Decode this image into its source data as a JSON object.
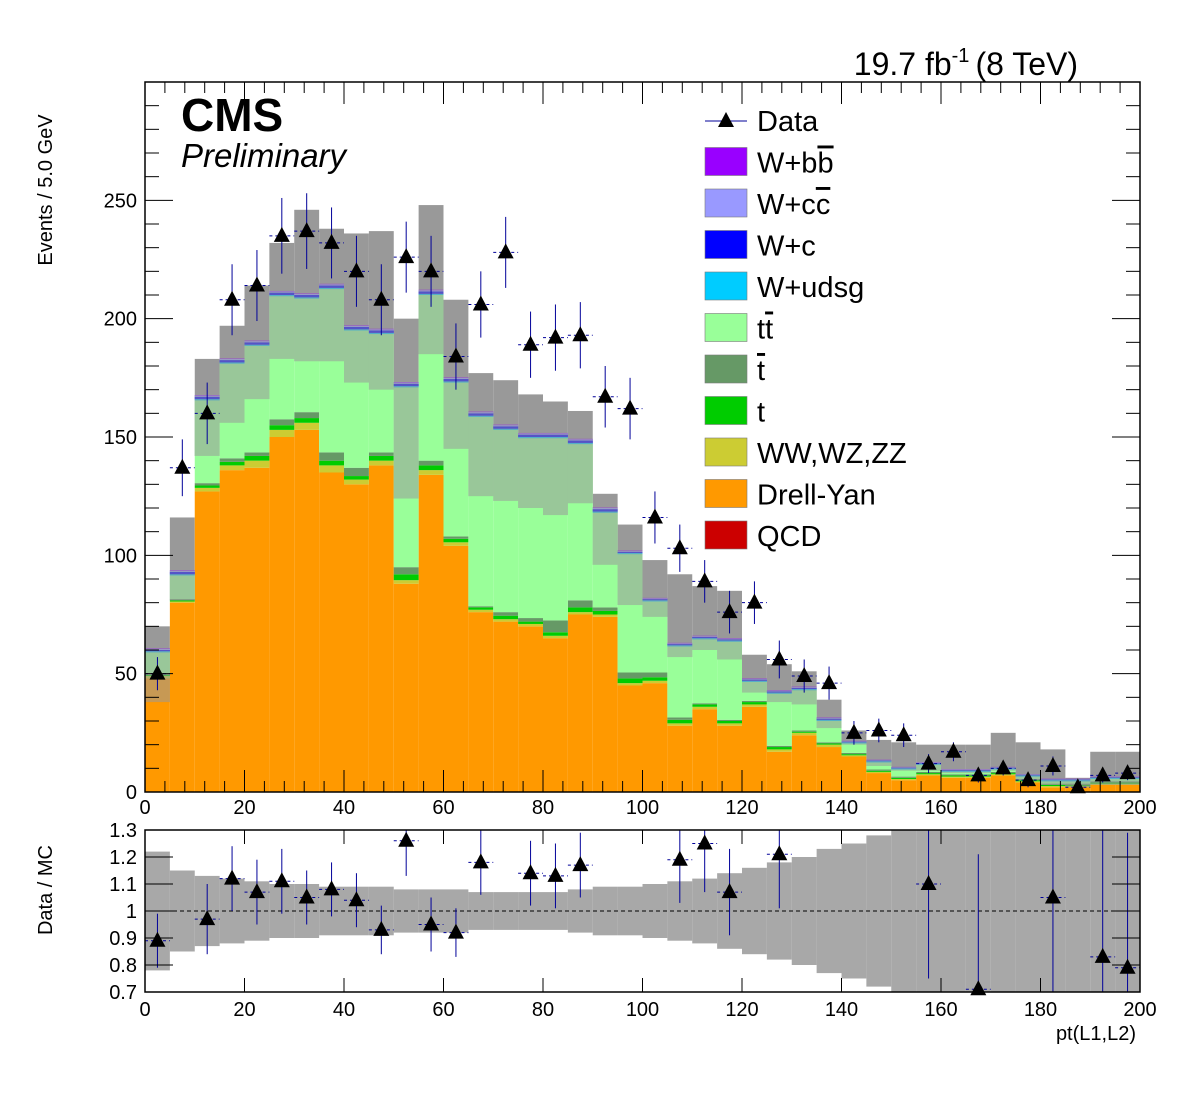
{
  "header": {
    "lumi_value": "19.7 fb",
    "lumi_exp": "-1",
    "lumi_energy": "(8 TeV)",
    "experiment": "CMS",
    "status": "Preliminary"
  },
  "colors": {
    "qcd": "#cc0000",
    "dy": "#ff9900",
    "diboson": "#cccc33",
    "t": "#00cc00",
    "tbar": "#669966",
    "ttbar": "#99ff99",
    "wudsg": "#00ccff",
    "wc": "#0000ff",
    "wcc": "#9999ff",
    "wbb": "#9900ff",
    "uncertainty": "#999999",
    "data": "#000000",
    "error_bar": "#000099"
  },
  "chart_data": [
    {
      "type": "bar",
      "stacked": true,
      "xlabel": "",
      "ylabel": "Events / 5.0 GeV",
      "xlim": [
        0,
        200
      ],
      "ylim": [
        0,
        300
      ],
      "bin_width": 5,
      "bin_edges_start": [
        0,
        5,
        10,
        15,
        20,
        25,
        30,
        35,
        40,
        45,
        50,
        55,
        60,
        65,
        70,
        75,
        80,
        85,
        90,
        95,
        100,
        105,
        110,
        115,
        120,
        125,
        130,
        135,
        140,
        145,
        150,
        155,
        160,
        165,
        170,
        175,
        180,
        185,
        190,
        195
      ],
      "x_ticks": [
        0,
        20,
        40,
        60,
        80,
        100,
        120,
        140,
        160,
        180,
        200
      ],
      "y_ticks": [
        0,
        50,
        100,
        150,
        200,
        250
      ],
      "legend": {
        "position": "top-right",
        "entries": [
          {
            "key": "data",
            "label": "Data"
          },
          {
            "key": "wbb",
            "label": "W+bb",
            "overline_from": 3
          },
          {
            "key": "wcc",
            "label": "W+cc",
            "overline_from": 3
          },
          {
            "key": "wc",
            "label": "W+c"
          },
          {
            "key": "wudsg",
            "label": "W+udsg"
          },
          {
            "key": "ttbar",
            "label": "tt",
            "overline_from": 1
          },
          {
            "key": "tbar",
            "label": "t",
            "overline_from": 0
          },
          {
            "key": "t",
            "label": "t"
          },
          {
            "key": "diboson",
            "label": "WW,WZ,ZZ"
          },
          {
            "key": "dy",
            "label": "Drell-Yan"
          },
          {
            "key": "qcd",
            "label": "QCD"
          }
        ]
      },
      "series": [
        {
          "key": "qcd",
          "label": "QCD",
          "values": [
            0,
            0,
            0,
            0,
            0,
            0,
            0,
            0,
            0,
            0,
            0,
            0,
            0,
            0,
            0,
            0,
            0,
            0,
            0,
            0,
            0,
            0,
            0,
            0,
            0,
            0,
            0,
            0,
            0,
            0,
            0,
            0,
            0,
            0,
            0,
            0,
            0,
            0,
            0,
            0
          ]
        },
        {
          "key": "dy",
          "label": "Drell-Yan",
          "values": [
            48,
            80,
            127,
            136,
            137,
            150,
            153,
            135,
            130,
            138,
            88,
            134,
            104,
            76,
            72,
            70,
            65,
            75,
            74,
            45,
            46,
            28,
            35,
            28,
            36,
            17,
            24,
            19,
            15,
            8,
            5,
            7,
            6,
            6,
            7,
            4,
            2,
            2,
            3,
            3
          ]
        },
        {
          "key": "diboson",
          "label": "WW,WZ,ZZ",
          "values": [
            1,
            0.5,
            1.5,
            2,
            3,
            3,
            3,
            3,
            2,
            2,
            1.5,
            2,
            1.5,
            1,
            1,
            1,
            1,
            1,
            1,
            1,
            1,
            1,
            1,
            1,
            1,
            1,
            1,
            1,
            0.5,
            0.5,
            0.5,
            0.5,
            0.5,
            0.5,
            0.5,
            0.5,
            0.5,
            0.5,
            0.5,
            0.5
          ]
        },
        {
          "key": "t",
          "label": "t",
          "values": [
            0.5,
            0.5,
            1,
            1.5,
            2,
            2,
            2,
            2,
            1.5,
            2,
            2.5,
            2,
            1.5,
            1,
            1.5,
            1,
            1.5,
            2,
            1.5,
            2,
            1.5,
            1.5,
            1,
            1,
            1,
            1,
            0.5,
            0.5,
            0.5,
            0.5,
            0.5,
            0.5,
            0.5,
            0.5,
            0.5,
            0.5,
            0.5,
            0.5,
            0.5,
            0.5
          ]
        },
        {
          "key": "tbar",
          "label": "t",
          "values": [
            0.5,
            0.5,
            1,
            1.5,
            1.5,
            2.5,
            2.5,
            3.5,
            3.5,
            1.5,
            3,
            2,
            1,
            0.5,
            1.5,
            1.5,
            5,
            3,
            1.5,
            2.5,
            2,
            1,
            0.5,
            0.5,
            0.5,
            0.5,
            0.5,
            0.5,
            0.5,
            0.5,
            0.5,
            0.5,
            0.5,
            0.5,
            0.5,
            0.5,
            0.5,
            0.5,
            0.5,
            0.5
          ]
        },
        {
          "key": "ttbar",
          "label": "tt",
          "values": [
            9,
            10,
            35,
            40,
            45,
            52,
            48,
            69,
            58,
            50,
            76,
            70,
            65,
            80,
            77,
            76,
            77,
            66,
            40,
            50,
            30,
            30,
            27,
            33,
            8,
            22,
            17,
            9,
            4,
            3,
            3,
            3,
            1,
            1,
            1,
            1,
            1,
            1,
            1,
            1
          ]
        },
        {
          "key": "wudsg",
          "label": "W+udsg",
          "values": [
            0.5,
            0.5,
            0.5,
            0.5,
            0.5,
            0.5,
            0.5,
            0.5,
            0.5,
            0.5,
            0.5,
            0.5,
            0.5,
            0.5,
            0.5,
            0.5,
            0.5,
            0.5,
            0.5,
            0.5,
            0.5,
            0.5,
            0.5,
            0.5,
            0.5,
            0.5,
            0.5,
            0.5,
            0.5,
            0.5,
            0.5,
            0.5,
            0.5,
            0.5,
            0.5,
            0.5,
            0.5,
            0.5,
            0.5,
            0.5
          ]
        },
        {
          "key": "wc",
          "label": "W+c",
          "values": [
            0.5,
            1,
            1,
            1,
            1,
            1,
            1,
            1,
            1,
            1,
            1,
            1,
            1,
            1,
            1,
            1,
            1,
            1,
            1,
            0.5,
            0.5,
            0.5,
            0.5,
            0.5,
            0.5,
            0.5,
            0.5,
            0.5,
            0.3,
            0.3,
            0.3,
            0.3,
            0.3,
            0.3,
            0.3,
            0.3,
            0.3,
            0.3,
            0.3,
            0.3
          ]
        },
        {
          "key": "wcc",
          "label": "W+cc",
          "values": [
            0.5,
            0.5,
            0.5,
            0.5,
            0.5,
            0.5,
            0.5,
            0.5,
            0.5,
            0.5,
            0.5,
            0.5,
            0.5,
            0.5,
            0.5,
            0.5,
            0.5,
            0.5,
            0.5,
            0.3,
            0.3,
            0.3,
            0.3,
            0.3,
            0.3,
            0.3,
            0.3,
            0.3,
            0.2,
            0.2,
            0.2,
            0.2,
            0.2,
            0.2,
            0.2,
            0.2,
            0.2,
            0.2,
            0.2,
            0.2
          ]
        },
        {
          "key": "wbb",
          "label": "W+bb",
          "values": [
            0.2,
            0.2,
            0.2,
            0.2,
            0.2,
            0.2,
            0.2,
            0.2,
            0.2,
            0.2,
            0.2,
            0.2,
            0.2,
            0.2,
            0.2,
            0.2,
            0.2,
            0.2,
            0.2,
            0.2,
            0.2,
            0.2,
            0.2,
            0.2,
            0.2,
            0.2,
            0.2,
            0.2,
            0.1,
            0.1,
            0.1,
            0.1,
            0.1,
            0.1,
            0.1,
            0.1,
            0.1,
            0.1,
            0.1,
            0.1
          ]
        }
      ],
      "uncertainty_band": {
        "low": [
          38,
          81,
          142,
          156,
          166,
          183,
          182,
          182,
          173,
          170,
          124,
          185,
          145,
          125,
          123,
          120,
          117,
          122,
          96,
          79,
          74,
          57,
          60,
          56,
          42,
          38,
          37,
          27,
          20,
          11,
          9,
          9,
          8,
          8,
          9,
          5,
          3,
          2,
          3,
          3
        ],
        "high": [
          70,
          116,
          183,
          197,
          214,
          232,
          246,
          238,
          236,
          237,
          200,
          248,
          208,
          177,
          174,
          168,
          165,
          161,
          126,
          113,
          98,
          92,
          87,
          85,
          58,
          54,
          51,
          39,
          26,
          22,
          21,
          20,
          20,
          20,
          25,
          21,
          18,
          6,
          17,
          17
        ]
      },
      "data_points": {
        "x": [
          2.5,
          7.5,
          12.5,
          17.5,
          22.5,
          27.5,
          32.5,
          37.5,
          42.5,
          47.5,
          52.5,
          57.5,
          62.5,
          67.5,
          72.5,
          77.5,
          82.5,
          87.5,
          92.5,
          97.5,
          102.5,
          107.5,
          112.5,
          117.5,
          122.5,
          127.5,
          132.5,
          137.5,
          142.5,
          147.5,
          152.5,
          157.5,
          162.5,
          167.5,
          172.5,
          177.5,
          182.5,
          187.5,
          192.5,
          197.5
        ],
        "y": [
          50,
          137,
          160,
          208,
          214,
          235,
          237,
          232,
          220,
          208,
          226,
          220,
          184,
          206,
          228,
          189,
          192,
          193,
          167,
          162,
          116,
          103,
          89,
          76,
          80,
          56,
          49,
          46,
          25,
          26,
          24,
          12,
          17,
          7,
          10,
          5,
          11,
          2,
          7,
          8
        ],
        "y_err": [
          7,
          12,
          13,
          15,
          15,
          16,
          16,
          15,
          15,
          15,
          15,
          15,
          14,
          14,
          15,
          14,
          14,
          14,
          13,
          13,
          11,
          10,
          9,
          9,
          9,
          8,
          7,
          7,
          5,
          5,
          5,
          4,
          4,
          3,
          3,
          3,
          4,
          2,
          3,
          3
        ]
      }
    },
    {
      "type": "scatter",
      "xlabel": "pt(L1,L2)",
      "ylabel": "Data / MC",
      "xlim": [
        0,
        200
      ],
      "ylim": [
        0.7,
        1.3
      ],
      "x_ticks": [
        0,
        20,
        40,
        60,
        80,
        100,
        120,
        140,
        160,
        180,
        200
      ],
      "y_ticks": [
        0.7,
        0.8,
        0.9,
        1,
        1.1,
        1.2,
        1.3
      ],
      "y_tick_labels": [
        "0.7",
        "0.8",
        "0.9",
        "1",
        "1.1",
        "1.2",
        "1.3"
      ],
      "uncertainty_band": {
        "low": [
          0.78,
          0.85,
          0.87,
          0.88,
          0.89,
          0.9,
          0.9,
          0.91,
          0.91,
          0.91,
          0.92,
          0.92,
          0.92,
          0.93,
          0.93,
          0.93,
          0.93,
          0.92,
          0.91,
          0.91,
          0.9,
          0.89,
          0.88,
          0.86,
          0.84,
          0.82,
          0.8,
          0.77,
          0.75,
          0.72,
          0.7,
          0.7,
          0.7,
          0.7,
          0.7,
          0.7,
          0.7,
          0.7,
          0.7,
          0.7
        ],
        "high": [
          1.22,
          1.15,
          1.13,
          1.12,
          1.11,
          1.1,
          1.1,
          1.09,
          1.09,
          1.09,
          1.08,
          1.08,
          1.08,
          1.07,
          1.07,
          1.07,
          1.07,
          1.08,
          1.09,
          1.09,
          1.1,
          1.11,
          1.12,
          1.14,
          1.16,
          1.18,
          1.2,
          1.23,
          1.25,
          1.28,
          1.3,
          1.3,
          1.3,
          1.3,
          1.3,
          1.3,
          1.3,
          1.3,
          1.3,
          1.3
        ]
      },
      "data_points": {
        "x": [
          2.5,
          12.5,
          17.5,
          22.5,
          27.5,
          32.5,
          37.5,
          42.5,
          47.5,
          52.5,
          57.5,
          62.5,
          67.5,
          77.5,
          82.5,
          87.5,
          107.5,
          112.5,
          117.5,
          127.5,
          157.5,
          167.5,
          182.5,
          192.5,
          197.5
        ],
        "y": [
          0.89,
          0.97,
          1.12,
          1.07,
          1.11,
          1.05,
          1.08,
          1.04,
          0.93,
          1.26,
          0.95,
          0.92,
          1.18,
          1.14,
          1.13,
          1.17,
          1.19,
          1.25,
          1.07,
          1.21,
          1.1,
          0.71,
          1.05,
          0.83,
          0.79
        ],
        "y_err": [
          0.1,
          0.13,
          0.12,
          0.12,
          0.12,
          0.1,
          0.1,
          0.1,
          0.09,
          0.13,
          0.1,
          0.09,
          0.12,
          0.12,
          0.12,
          0.12,
          0.16,
          0.18,
          0.16,
          0.2,
          0.35,
          0.5,
          0.4,
          0.5,
          0.5
        ]
      }
    }
  ]
}
